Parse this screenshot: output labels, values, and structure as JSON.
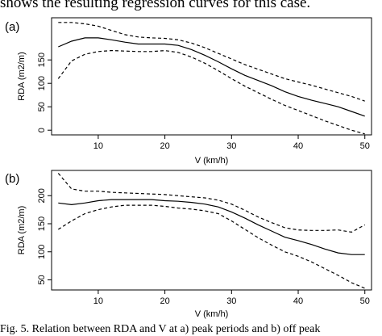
{
  "header_text": "shows the resulting regression curves for this case.",
  "caption": "Fig. 5. Relation between RDA and V at a) peak periods and b) off peak",
  "chart_data": [
    {
      "type": "line",
      "panel_label": "(a)",
      "xlabel": "V (km/h)",
      "ylabel": "RDA (m2/m)",
      "xlim": [
        3,
        51
      ],
      "ylim": [
        -10,
        240
      ],
      "xticks": [
        10,
        20,
        30,
        40,
        50
      ],
      "yticks": [
        0,
        50,
        100,
        150
      ],
      "grid": false,
      "series": [
        {
          "style": "solid",
          "x": [
            4,
            6,
            8,
            10,
            12,
            14,
            16,
            18,
            20,
            22,
            24,
            26,
            28,
            30,
            32,
            34,
            36,
            38,
            40,
            42,
            44,
            46,
            48,
            50
          ],
          "y": [
            178,
            190,
            197,
            197,
            193,
            188,
            184,
            184,
            184,
            181,
            172,
            160,
            146,
            131,
            117,
            106,
            95,
            82,
            72,
            64,
            57,
            50,
            40,
            30
          ]
        },
        {
          "style": "dashed",
          "x": [
            4,
            6,
            8,
            10,
            12,
            14,
            16,
            18,
            20,
            22,
            24,
            26,
            28,
            30,
            32,
            34,
            36,
            38,
            40,
            42,
            44,
            46,
            48,
            50
          ],
          "y": [
            230,
            230,
            227,
            222,
            213,
            204,
            199,
            197,
            196,
            193,
            186,
            176,
            164,
            152,
            140,
            130,
            120,
            110,
            103,
            96,
            88,
            80,
            72,
            62
          ]
        },
        {
          "style": "dashed",
          "x": [
            4,
            6,
            8,
            10,
            12,
            14,
            16,
            18,
            20,
            22,
            24,
            26,
            28,
            30,
            32,
            34,
            36,
            38,
            40,
            42,
            44,
            46,
            48,
            50
          ],
          "y": [
            110,
            148,
            162,
            168,
            170,
            169,
            168,
            168,
            170,
            166,
            156,
            143,
            127,
            110,
            94,
            80,
            66,
            53,
            42,
            31,
            20,
            10,
            0,
            -8
          ]
        }
      ]
    },
    {
      "type": "line",
      "panel_label": "(b)",
      "xlabel": "V (km/h)",
      "ylabel": "RDA (m2/m)",
      "xlim": [
        3,
        51
      ],
      "ylim": [
        32,
        245
      ],
      "xticks": [
        10,
        20,
        30,
        40,
        50
      ],
      "yticks": [
        50,
        100,
        150,
        200
      ],
      "grid": false,
      "series": [
        {
          "style": "solid",
          "x": [
            4,
            6,
            8,
            10,
            12,
            14,
            16,
            18,
            20,
            22,
            24,
            26,
            28,
            30,
            32,
            34,
            36,
            38,
            40,
            42,
            44,
            46,
            48,
            50
          ],
          "y": [
            187,
            184,
            187,
            191,
            193,
            193,
            193,
            193,
            191,
            190,
            188,
            185,
            180,
            171,
            160,
            148,
            137,
            126,
            120,
            113,
            105,
            98,
            95,
            95
          ]
        },
        {
          "style": "dashed",
          "x": [
            4,
            6,
            8,
            10,
            12,
            14,
            16,
            18,
            20,
            22,
            24,
            26,
            28,
            30,
            32,
            34,
            36,
            38,
            40,
            42,
            44,
            46,
            48,
            50
          ],
          "y": [
            240,
            212,
            208,
            208,
            206,
            205,
            204,
            203,
            202,
            200,
            198,
            196,
            192,
            185,
            174,
            162,
            152,
            143,
            139,
            138,
            138,
            139,
            135,
            148
          ]
        },
        {
          "style": "dashed",
          "x": [
            4,
            6,
            8,
            10,
            12,
            14,
            16,
            18,
            20,
            22,
            24,
            26,
            28,
            30,
            32,
            34,
            36,
            38,
            40,
            42,
            44,
            46,
            48,
            50
          ],
          "y": [
            140,
            155,
            168,
            175,
            180,
            183,
            183,
            183,
            181,
            178,
            176,
            173,
            168,
            155,
            140,
            125,
            112,
            100,
            92,
            82,
            70,
            58,
            45,
            35
          ]
        }
      ]
    }
  ]
}
